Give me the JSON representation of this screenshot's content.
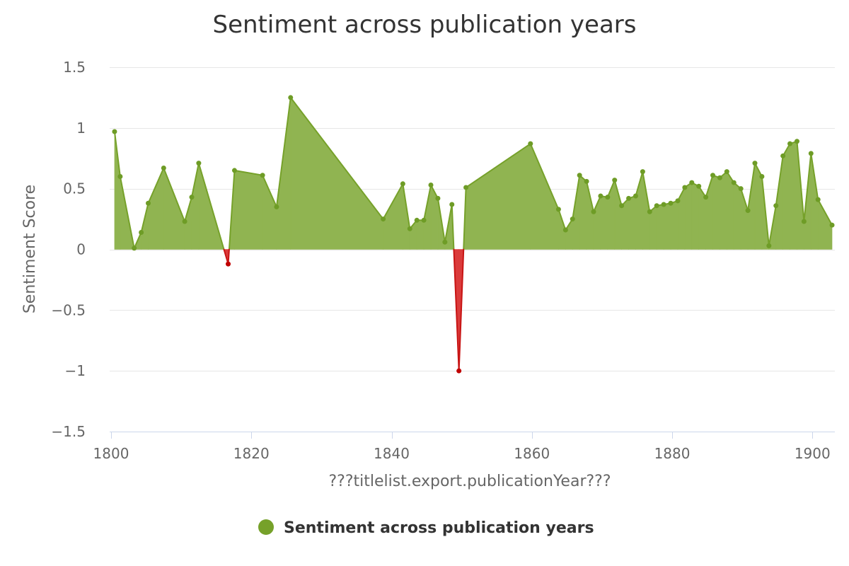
{
  "chart_data": {
    "type": "area",
    "title": "Sentiment across publication years",
    "xlabel": "???titlelist.export.publicationYear???",
    "ylabel": "Sentiment Score",
    "xlim": [
      1799.8,
      1903.2
    ],
    "ylim": [
      -1.5,
      1.5
    ],
    "x_ticks": [
      1800,
      1820,
      1840,
      1860,
      1880,
      1900
    ],
    "x_tick_labels": [
      "1800",
      "1820",
      "1840",
      "1860",
      "1880",
      "1900"
    ],
    "y_ticks": [
      -1.5,
      -1,
      -0.5,
      0,
      0.5,
      1,
      1.5
    ],
    "y_tick_labels": [
      "−1.5",
      "−1",
      "−0.5",
      "0",
      "0.5",
      "1",
      "1.5"
    ],
    "grid": "horizontal",
    "legend_position": "bottom-center",
    "colors": {
      "positive_fill": "#90b451",
      "positive_line": "#76a12a",
      "positive_marker": "#6e9c26",
      "negative_fill": "#db3b3b",
      "negative_line": "#c81414",
      "negative_marker": "#c00000",
      "grid": "#e6e6e6",
      "axis": "#ccd6eb"
    },
    "series": [
      {
        "name": "Sentiment across publication years",
        "x": [
          1800.5,
          1801.3,
          1803.3,
          1804.3,
          1805.3,
          1807.5,
          1810.5,
          1811.5,
          1812.5,
          1816.7,
          1817.6,
          1821.6,
          1823.6,
          1825.6,
          1838.8,
          1841.6,
          1842.6,
          1843.6,
          1844.6,
          1845.6,
          1846.6,
          1847.6,
          1848.6,
          1849.6,
          1850.6,
          1859.8,
          1863.8,
          1864.8,
          1865.8,
          1866.8,
          1867.8,
          1868.8,
          1869.8,
          1870.8,
          1871.8,
          1872.8,
          1873.8,
          1874.8,
          1875.8,
          1876.8,
          1877.8,
          1878.8,
          1879.8,
          1880.8,
          1881.8,
          1882.8,
          1883.8,
          1884.8,
          1885.8,
          1886.8,
          1887.8,
          1888.8,
          1889.8,
          1890.8,
          1891.8,
          1892.8,
          1893.8,
          1894.8,
          1895.8,
          1896.8,
          1897.8,
          1898.8,
          1899.8,
          1900.8,
          1902.8
        ],
        "values": [
          0.97,
          0.6,
          0.01,
          0.14,
          0.38,
          0.67,
          0.23,
          0.43,
          0.71,
          -0.12,
          0.65,
          0.61,
          0.35,
          1.25,
          0.25,
          0.54,
          0.17,
          0.24,
          0.24,
          0.53,
          0.42,
          0.06,
          0.37,
          -1.0,
          0.51,
          0.87,
          0.33,
          0.16,
          0.25,
          0.61,
          0.56,
          0.31,
          0.44,
          0.43,
          0.57,
          0.36,
          0.42,
          0.44,
          0.64,
          0.31,
          0.36,
          0.37,
          0.38,
          0.4,
          0.51,
          0.55,
          0.52,
          0.43,
          0.61,
          0.59,
          0.64,
          0.55,
          0.5,
          0.32,
          0.71,
          0.6,
          0.03,
          0.36,
          0.77,
          0.87,
          0.89,
          0.23,
          0.79,
          0.41,
          0.2
        ]
      }
    ]
  }
}
